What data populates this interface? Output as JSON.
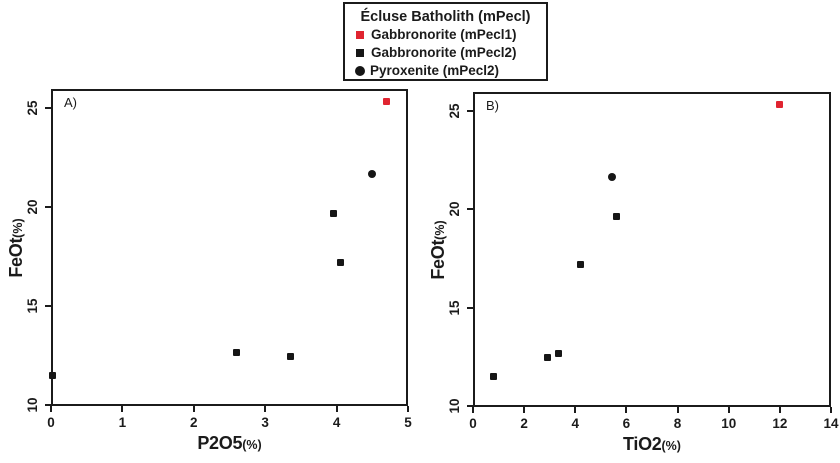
{
  "figure": {
    "background": "#ffffff",
    "axis_color": "#1b1b1b"
  },
  "legend": {
    "title": "Écluse Batholith (mPecl)",
    "items": [
      {
        "label": "Gabbronorite (mPecl1)",
        "marker": "square",
        "color": "#e02430"
      },
      {
        "label": "Gabbronorite (mPecl2)",
        "marker": "square",
        "color": "#161616"
      },
      {
        "label": "Pyroxenite (mPecl2)",
        "marker": "circle",
        "color": "#161616"
      }
    ]
  },
  "chart_data": [
    {
      "type": "scatter",
      "panel_label": "A)",
      "xlabel": "P2O5",
      "xlabel_unit": "(%)",
      "ylabel": "FeOt",
      "ylabel_unit": "(%)",
      "xlim": [
        0,
        5
      ],
      "ylim": [
        9.95,
        25.95
      ],
      "xticks": [
        0,
        1,
        2,
        3,
        4,
        5
      ],
      "yticks": [
        10,
        15,
        20,
        25
      ],
      "grid": false,
      "series": [
        {
          "name": "Gabbronorite (mPecl1)",
          "marker": "square",
          "color": "#e02430",
          "size": 7,
          "points": [
            [
              4.7,
              25.3
            ]
          ]
        },
        {
          "name": "Gabbronorite (mPecl2)",
          "marker": "square",
          "color": "#161616",
          "size": 7,
          "points": [
            [
              0.02,
              11.5
            ],
            [
              2.6,
              12.65
            ],
            [
              3.35,
              12.45
            ],
            [
              3.95,
              19.65
            ],
            [
              4.05,
              17.2
            ]
          ]
        },
        {
          "name": "Pyroxenite (mPecl2)",
          "marker": "circle",
          "color": "#161616",
          "size": 8,
          "points": [
            [
              4.5,
              21.65
            ]
          ]
        }
      ]
    },
    {
      "type": "scatter",
      "panel_label": "B)",
      "xlabel": "TiO2",
      "xlabel_unit": "(%)",
      "ylabel": "FeOt",
      "ylabel_unit": "(%)",
      "xlim": [
        0,
        14
      ],
      "ylim": [
        9.95,
        25.95
      ],
      "xticks": [
        0,
        2,
        4,
        6,
        8,
        10,
        12,
        14
      ],
      "yticks": [
        10,
        15,
        20,
        25
      ],
      "grid": false,
      "series": [
        {
          "name": "Gabbronorite (mPecl1)",
          "marker": "square",
          "color": "#e02430",
          "size": 7,
          "points": [
            [
              12.0,
              25.3
            ]
          ]
        },
        {
          "name": "Gabbronorite (mPecl2)",
          "marker": "square",
          "color": "#161616",
          "size": 7,
          "points": [
            [
              0.8,
              11.5
            ],
            [
              2.9,
              12.45
            ],
            [
              3.35,
              12.65
            ],
            [
              4.2,
              17.2
            ],
            [
              5.6,
              19.65
            ]
          ]
        },
        {
          "name": "Pyroxenite (mPecl2)",
          "marker": "circle",
          "color": "#161616",
          "size": 8,
          "points": [
            [
              5.45,
              21.65
            ]
          ]
        }
      ]
    }
  ]
}
